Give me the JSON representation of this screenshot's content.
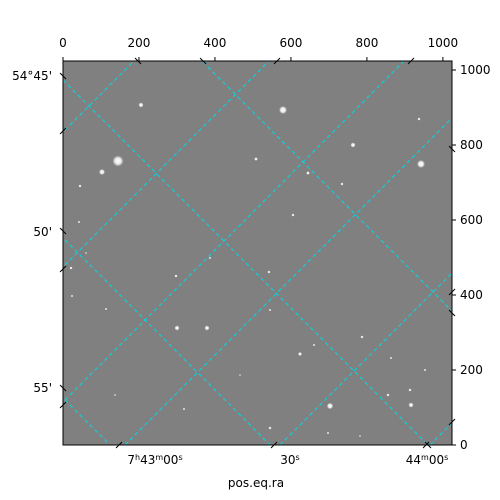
{
  "chart_data": {
    "type": "image",
    "xlabel": "pos.eq.ra",
    "ylabel": "",
    "pixel_axes": {
      "xlim": [
        0,
        1024
      ],
      "ylim": [
        0,
        1024
      ],
      "top_ticks": [
        "0",
        "200",
        "400",
        "600",
        "800",
        "1000"
      ],
      "right_ticks": [
        "0",
        "200",
        "400",
        "600",
        "800",
        "1000"
      ]
    },
    "world_axes": {
      "ra_ticks": [
        {
          "h": "7",
          "m": "43",
          "s": "00",
          "label": "7h43m00s"
        },
        {
          "s": "30",
          "label": "30s"
        },
        {
          "m": "44",
          "s": "00",
          "label": "44m00s"
        }
      ],
      "dec_ticks": [
        {
          "value": "54°45'",
          "label": "54°45'"
        },
        {
          "value": "50'",
          "label": "50'"
        },
        {
          "value": "55'",
          "label": "55'"
        }
      ]
    },
    "image": {
      "cmap": "gray",
      "background": "#808080"
    },
    "grid": {
      "on": true,
      "color": "#00d8e8",
      "style": "dashed"
    }
  },
  "labels": {
    "ra_h": "7",
    "ra_m1": "43",
    "ra_s00": "00",
    "ra_s30": "30",
    "ra_m2": "44",
    "ra_s00b": "00",
    "h_sym": "h",
    "m_sym": "m",
    "s_sym": "s"
  },
  "colors": {
    "grid": "#00d8e8",
    "sky": "#808080"
  }
}
